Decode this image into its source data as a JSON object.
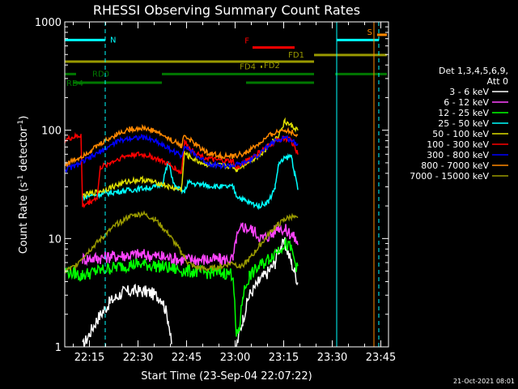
{
  "chart_data": {
    "type": "line",
    "title": "RHESSI Observing Summary Count Rates",
    "xlabel": "Start Time (23-Sep-04 22:07:22)",
    "ylabel": "Count Rate (s^-1 detector^-1)",
    "ylabel_main": "Count Rate (s",
    "ylabel_sup1": "-1",
    "ylabel_mid": " detector",
    "ylabel_sup2": "-1",
    "ylabel_end": ")",
    "yscale": "log",
    "ylim": [
      1,
      1000
    ],
    "xlim": [
      "22:07:22",
      "23:47:22"
    ],
    "xticks": [
      "22:15",
      "22:30",
      "22:45",
      "23:00",
      "23:15",
      "23:30",
      "23:45"
    ],
    "xtick_minutes": [
      7.63,
      22.63,
      37.63,
      52.63,
      67.63,
      82.63,
      97.63
    ],
    "yticks": [
      "1",
      "10",
      "100",
      "1000"
    ],
    "ytick_values": [
      1,
      10,
      100,
      1000
    ],
    "legend_header": [
      "Det 1,3,4,5,6,9,",
      "Att 0"
    ],
    "legend_position": "right",
    "timestamp": "21-Oct-2021 08:01",
    "series": [
      {
        "name": "3 - 6 keV",
        "color": "#ffffff",
        "t": [
          0,
          5,
          5.5,
          10,
          14,
          18,
          22,
          26,
          30,
          32,
          33,
          36,
          40,
          44,
          48,
          50,
          53,
          55,
          57,
          60,
          63,
          65,
          66,
          68,
          70,
          72
        ],
        "y": [
          null,
          null,
          1,
          1.8,
          2.6,
          3.2,
          3.3,
          3.2,
          2.8,
          1.8,
          1,
          null,
          null,
          null,
          null,
          null,
          1,
          1.8,
          3,
          4,
          5,
          6,
          8,
          9,
          6,
          4
        ]
      },
      {
        "name": "6 - 12 keV",
        "color": "#ff44ff",
        "t": [
          0,
          5,
          5.5,
          10,
          14,
          18,
          22,
          26,
          30,
          33,
          36,
          40,
          44,
          48,
          52,
          53,
          55,
          58,
          61,
          64,
          66,
          68,
          70,
          71,
          72
        ],
        "y": [
          null,
          null,
          6.5,
          6.6,
          6.8,
          7,
          7.1,
          7,
          6.8,
          6.6,
          6.4,
          6.4,
          6.4,
          6.4,
          6.4,
          10,
          13,
          12,
          10,
          11,
          13,
          12,
          11,
          10,
          9
        ]
      },
      {
        "name": "12 - 25 keV",
        "color": "#00ff00",
        "t": [
          0,
          3,
          5,
          5.5,
          10,
          14,
          18,
          22,
          26,
          30,
          34,
          38,
          42,
          46,
          50,
          52,
          53,
          54,
          55,
          57,
          60,
          63,
          66,
          68,
          70,
          72
        ],
        "y": [
          5,
          4.8,
          4.5,
          4.6,
          5,
          5.3,
          5.6,
          5.8,
          5.7,
          5.5,
          5.2,
          5,
          4.9,
          4.8,
          4.8,
          4.7,
          1.2,
          1.5,
          3,
          4.5,
          5.5,
          6.5,
          8,
          9,
          8,
          5
        ]
      },
      {
        "name": "25 - 50 keV",
        "color": "#00ffff",
        "t": [
          0,
          5,
          5.5,
          8,
          12,
          16,
          20,
          24,
          28,
          30,
          31,
          32,
          34,
          36,
          37,
          38,
          40,
          44,
          48,
          52,
          53,
          56,
          60,
          63,
          65,
          66,
          68,
          70,
          71,
          72
        ],
        "y": [
          null,
          null,
          24,
          25,
          26,
          27,
          28,
          29,
          30,
          32,
          40,
          50,
          30,
          28,
          27,
          33,
          32,
          31,
          30,
          30,
          25,
          22,
          20,
          22,
          30,
          48,
          55,
          58,
          40,
          28
        ]
      },
      {
        "name": "50 - 100 keV",
        "color": "#dddd00",
        "t": [
          0,
          5,
          5.5,
          8,
          12,
          16,
          20,
          24,
          28,
          30,
          32,
          34,
          36,
          37,
          38,
          42,
          46,
          50,
          52,
          53,
          56,
          60,
          63,
          66,
          68,
          70,
          72
        ],
        "y": [
          null,
          null,
          25,
          26,
          28,
          31,
          34,
          35,
          33,
          32,
          30,
          29,
          28,
          62,
          58,
          50,
          47,
          47,
          46,
          43,
          50,
          58,
          72,
          90,
          120,
          110,
          100
        ]
      },
      {
        "name": "100 - 300 keV",
        "color": "#ff0000",
        "t": [
          0,
          2,
          4,
          5,
          5.5,
          8,
          10,
          11,
          14,
          18,
          22,
          26,
          30,
          34,
          36,
          37,
          38,
          42,
          46,
          50,
          52,
          53,
          56,
          60,
          63,
          66,
          68,
          70,
          72
        ],
        "y": [
          80,
          85,
          88,
          90,
          20,
          22,
          24,
          45,
          50,
          57,
          60,
          58,
          52,
          45,
          40,
          80,
          70,
          58,
          53,
          52,
          52,
          44,
          52,
          62,
          72,
          82,
          85,
          80,
          60
        ]
      },
      {
        "name": "300 - 800 keV",
        "color": "#0000ff",
        "t": [
          0,
          4,
          8,
          12,
          16,
          20,
          24,
          28,
          32,
          36,
          37,
          40,
          44,
          48,
          52,
          56,
          60,
          64,
          68,
          72
        ],
        "y": [
          43,
          48,
          56,
          66,
          78,
          85,
          86,
          80,
          68,
          58,
          72,
          60,
          50,
          47,
          47,
          50,
          60,
          76,
          86,
          75
        ]
      },
      {
        "name": "800 - 7000 keV",
        "color": "#ff8800",
        "t": [
          0,
          4,
          8,
          12,
          16,
          20,
          24,
          28,
          32,
          36,
          37,
          40,
          44,
          48,
          52,
          56,
          60,
          64,
          68,
          72
        ],
        "y": [
          48,
          55,
          65,
          78,
          92,
          102,
          105,
          98,
          84,
          72,
          90,
          75,
          62,
          58,
          57,
          62,
          75,
          92,
          102,
          90
        ]
      },
      {
        "name": "7000 - 15000 keV",
        "color": "#999900",
        "t": [
          0,
          3,
          5,
          8,
          12,
          16,
          20,
          24,
          28,
          32,
          36,
          38,
          40,
          44,
          48,
          52,
          54,
          56,
          58,
          60,
          62,
          64,
          66,
          68,
          70,
          72
        ],
        "y": [
          5,
          5.5,
          6.5,
          8,
          10.5,
          13.5,
          16,
          17,
          15,
          11,
          7.5,
          6,
          5.5,
          5.2,
          5.5,
          6,
          5.5,
          6,
          7,
          8.5,
          10,
          12,
          13.5,
          15,
          16,
          15
        ]
      }
    ],
    "state_bars": [
      {
        "label": "N",
        "color": "#00ffff",
        "y": 680,
        "segments": [
          [
            0,
            12.5
          ],
          [
            84,
            97
          ]
        ]
      },
      {
        "label": "F",
        "color": "#ff0000",
        "y": 580,
        "segments": [
          [
            58,
            71
          ]
        ]
      },
      {
        "label": "S",
        "color": "#ff8800",
        "y": 760,
        "segments": [
          [
            96.5,
            99.5
          ]
        ]
      },
      {
        "label": "FD1",
        "color": "#999900",
        "y": 495,
        "segments": [
          [
            77,
            99.5
          ]
        ]
      },
      {
        "label": "FD2",
        "color": "#999900",
        "y": 430,
        "segments": [
          [
            0,
            77
          ]
        ]
      },
      {
        "label": "RD0",
        "color": "#007700",
        "y": 330,
        "segments": [
          [
            0,
            3.5
          ],
          [
            30,
            77
          ],
          [
            83.5,
            99.5
          ]
        ]
      },
      {
        "label": "RD4",
        "color": "#007700",
        "y": 275,
        "segments": [
          [
            2.5,
            30
          ],
          [
            56,
            77
          ]
        ]
      },
      {
        "label": "FD4",
        "color": "#999900",
        "y": 385,
        "segments": [
          [
            60.5,
            61
          ]
        ]
      }
    ],
    "vlines": [
      {
        "color": "#00ffff",
        "style": "dashed",
        "t": 12.5
      },
      {
        "color": "#00ffff",
        "style": "solid",
        "t": 84
      },
      {
        "color": "#ff8800",
        "style": "solid",
        "t": 95.5
      },
      {
        "color": "#00ffff",
        "style": "dashed",
        "t": 97
      }
    ]
  }
}
